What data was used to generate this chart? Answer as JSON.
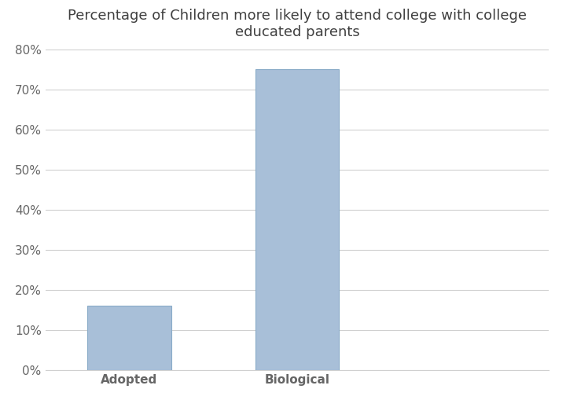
{
  "categories": [
    "Adopted",
    "Biological"
  ],
  "values": [
    16,
    75
  ],
  "bar_color": "#a8bfd8",
  "bar_edgecolor": "#8aacc8",
  "title": "Percentage of Children more likely to attend college with college\neducated parents",
  "title_fontsize": 13,
  "title_color": "#404040",
  "tick_label_color": "#666666",
  "tick_label_fontsize": 11,
  "xticklabel_fontsize": 11,
  "ylabel": "",
  "xlabel": "",
  "ylim": [
    0,
    80
  ],
  "yticks": [
    0,
    10,
    20,
    30,
    40,
    50,
    60,
    70,
    80
  ],
  "ytick_labels": [
    "0%",
    "10%",
    "20%",
    "30%",
    "40%",
    "50%",
    "60%",
    "70%",
    "80%"
  ],
  "background_color": "#ffffff",
  "grid_color": "#d0d0d0",
  "bar_width": 0.5,
  "xlim": [
    -0.5,
    2.5
  ]
}
